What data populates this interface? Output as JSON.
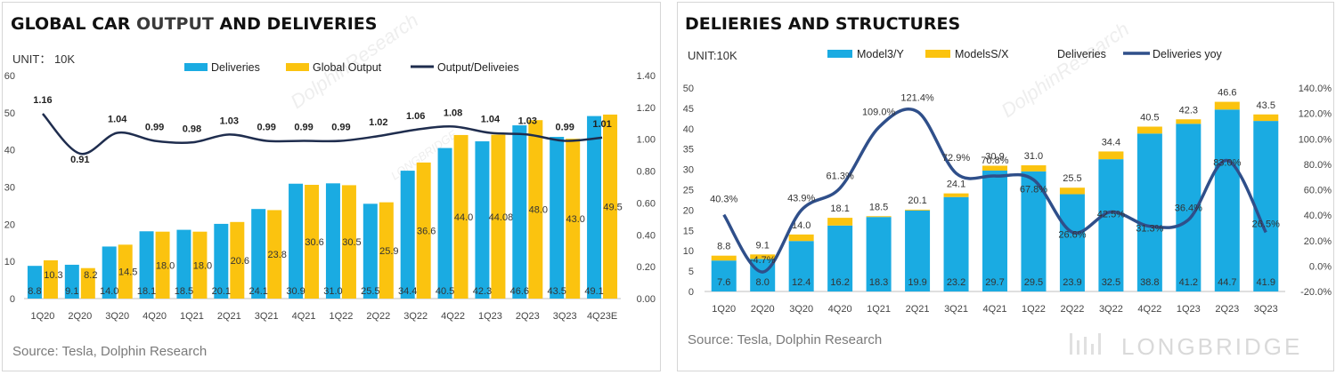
{
  "left": {
    "title_part1": "GLOBAL CAR ",
    "title_part2": "OUTPUT",
    "title_part3": " AND DELIVERIES",
    "unit": "UNIT： 10K",
    "source": "Source: Tesla, Dolphin Research",
    "watermark": "DolphinResearch",
    "watermark2": "LONGBRIDGE",
    "colors": {
      "deliveries": "#1aabe2",
      "output": "#fbc30f",
      "ratio": "#1f2d4e"
    }
  },
  "right": {
    "title": "DELIERIES AND STRUCTURES",
    "unit": "UNIT:10K",
    "source": "Source: Tesla, Dolphin Research",
    "brand": "LONGBRIDGE",
    "watermark": "DolphinResearch",
    "colors": {
      "model3y": "#1aabe2",
      "modelsx": "#fbc30f",
      "yoy": "#2f4f8a"
    }
  },
  "chart_data": [
    {
      "type": "bar",
      "categories": [
        "1Q20",
        "2Q20",
        "3Q20",
        "4Q20",
        "1Q21",
        "2Q21",
        "3Q21",
        "4Q21",
        "1Q22",
        "2Q22",
        "3Q22",
        "4Q22",
        "1Q23",
        "2Q23",
        "3Q23",
        "4Q23E"
      ],
      "series": [
        {
          "name": "Deliveries",
          "values": [
            8.8,
            9.1,
            14.0,
            18.1,
            18.5,
            20.1,
            24.1,
            30.9,
            31.0,
            25.5,
            34.4,
            40.5,
            42.3,
            46.6,
            43.5,
            49.1
          ],
          "labels": [
            "8.8",
            "9.1",
            "14.0",
            "18.1",
            "18.5",
            "20.1",
            "24.1",
            "30.9",
            "31.0",
            "25.5",
            "34.4",
            "40.5",
            "42.3",
            "46.6",
            "43.5",
            "49.1"
          ]
        },
        {
          "name": "Global Output",
          "values": [
            10.3,
            8.2,
            14.5,
            18.0,
            18.0,
            20.6,
            23.8,
            30.6,
            30.5,
            25.9,
            36.6,
            44.0,
            44.08,
            48.0,
            43.0,
            49.5
          ],
          "labels": [
            "10.3",
            "8.2",
            "14.5",
            "18.0",
            "18.0",
            "20.6",
            "23.8",
            "30.6",
            "30.5",
            "25.9",
            "36.6",
            "44.0",
            "44.08",
            "48.0",
            "43.0",
            "49.5"
          ]
        },
        {
          "name": "Output/Deliveies",
          "axis": "right",
          "values": [
            1.16,
            0.91,
            1.04,
            0.99,
            0.98,
            1.03,
            0.99,
            0.99,
            0.99,
            1.02,
            1.06,
            1.08,
            1.04,
            1.03,
            0.99,
            1.01
          ],
          "labels": [
            "1.16",
            "0.91",
            "1.04",
            "0.99",
            "0.98",
            "1.03",
            "0.99",
            "0.99",
            "0.99",
            "1.02",
            "1.06",
            "1.08",
            "1.04",
            "1.03",
            "0.99",
            "1.01"
          ]
        }
      ],
      "title": "GLOBAL CAR OUTPUT AND DELIVERIES",
      "ylabel": "UNIT： 10K",
      "ylim": [
        0,
        60
      ],
      "y_ticks": [
        "0",
        "10",
        "20",
        "30",
        "40",
        "50",
        "60"
      ],
      "y2lim": [
        0,
        1.4
      ],
      "y2_ticks": [
        "0.00",
        "0.20",
        "0.40",
        "0.60",
        "0.80",
        "1.00",
        "1.20",
        "1.40"
      ],
      "legend": [
        "Deliveries",
        "Global Output",
        "Output/Deliveies"
      ]
    },
    {
      "type": "bar",
      "stacked": true,
      "categories": [
        "1Q20",
        "2Q20",
        "3Q20",
        "4Q20",
        "1Q21",
        "2Q21",
        "3Q21",
        "4Q21",
        "1Q22",
        "2Q22",
        "3Q22",
        "4Q22",
        "1Q23",
        "2Q23",
        "3Q23"
      ],
      "series": [
        {
          "name": "Model3/Y",
          "values": [
            7.6,
            8.0,
            12.4,
            16.2,
            18.3,
            19.9,
            23.2,
            29.7,
            29.5,
            23.9,
            32.5,
            38.8,
            41.2,
            44.7,
            41.9
          ],
          "labels": [
            "7.6",
            "8.0",
            "12.4",
            "16.2",
            "18.3",
            "19.9",
            "23.2",
            "29.7",
            "29.5",
            "23.9",
            "32.5",
            "38.8",
            "41.2",
            "44.7",
            "41.9"
          ]
        },
        {
          "name": "ModelsS/X",
          "values": [
            1.2,
            1.1,
            1.6,
            1.9,
            0.2,
            0.2,
            0.9,
            1.2,
            1.5,
            1.6,
            1.9,
            1.7,
            1.1,
            1.9,
            1.6
          ]
        },
        {
          "name": "Deliveries",
          "values": [
            8.8,
            9.1,
            14.0,
            18.1,
            18.5,
            20.1,
            24.1,
            30.9,
            31.0,
            25.5,
            34.4,
            40.5,
            42.3,
            46.6,
            43.5
          ],
          "labels": [
            "8.8",
            "9.1",
            "14.0",
            "18.1",
            "18.5",
            "20.1",
            "24.1",
            "30.9",
            "31.0",
            "25.5",
            "34.4",
            "40.5",
            "42.3",
            "46.6",
            "43.5"
          ]
        },
        {
          "name": "Deliveries yoy",
          "axis": "right",
          "values": [
            40.3,
            -4.7,
            43.9,
            61.3,
            109.0,
            121.4,
            72.9,
            70.8,
            67.8,
            26.6,
            42.5,
            31.3,
            36.4,
            83.0,
            26.5
          ],
          "labels": [
            "40.3%",
            "-4.7%",
            "43.9%",
            "61.3%",
            "109.0%",
            "121.4%",
            "72.9%",
            "70.8%",
            "67.8%",
            "26.6%",
            "42.5%",
            "31.3%",
            "36.4%",
            "83.0%",
            "26.5%"
          ]
        }
      ],
      "title": "DELIERIES AND STRUCTURES",
      "ylabel": "UNIT:10K",
      "ylim": [
        0,
        50
      ],
      "y_ticks": [
        "0",
        "5",
        "10",
        "15",
        "20",
        "25",
        "30",
        "35",
        "40",
        "45",
        "50"
      ],
      "y2lim": [
        -20,
        140
      ],
      "y2_ticks": [
        "-20.0%",
        "0.0%",
        "20.0%",
        "40.0%",
        "60.0%",
        "80.0%",
        "100.0%",
        "120.0%",
        "140.0%"
      ],
      "legend": [
        "Model3/Y",
        "ModelsS/X",
        "Deliveries",
        "Deliveries yoy"
      ]
    }
  ]
}
